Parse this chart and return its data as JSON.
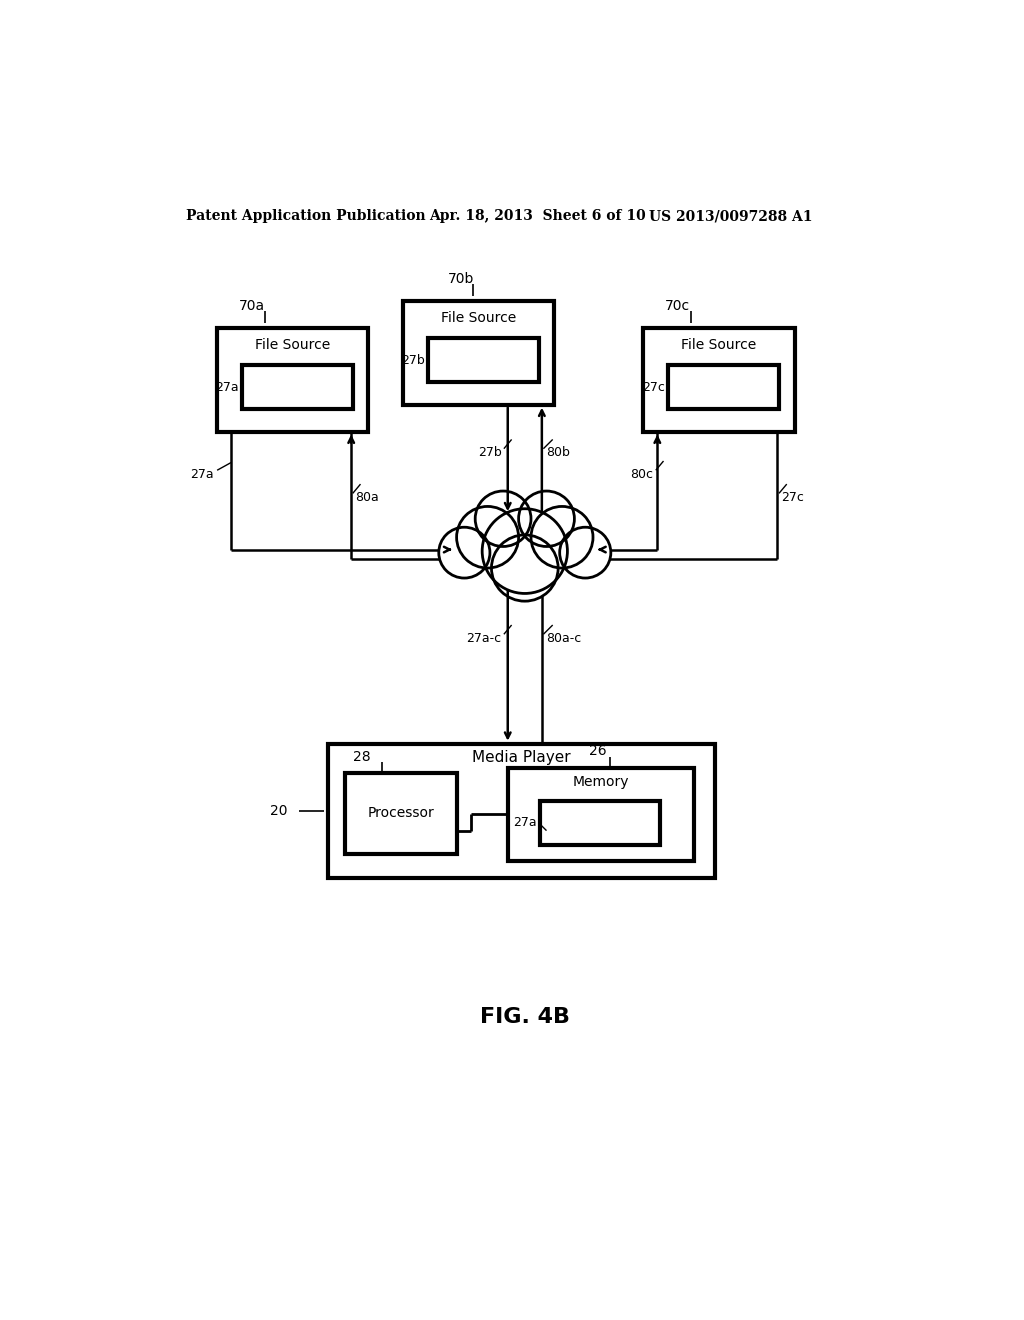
{
  "bg_color": "#ffffff",
  "header_left": "Patent Application Publication",
  "header_mid": "Apr. 18, 2013  Sheet 6 of 10",
  "header_right": "US 2013/0097288 A1",
  "fig_label": "FIG. 4B",
  "file_source_a_label": "File Source",
  "file_source_b_label": "File Source",
  "file_source_c_label": "File Source",
  "ref_70a": "70a",
  "ref_70b": "70b",
  "ref_70c": "70c",
  "ref_27a_box": "27a",
  "ref_27b_box": "27b",
  "ref_27c_box": "27c",
  "ref_27a_line": "27a",
  "ref_27b_line": "27b",
  "ref_27c_line": "27c",
  "ref_80a": "80a",
  "ref_80b": "80b",
  "ref_80c": "80c",
  "ref_27ac": "27a-c",
  "ref_80ac": "80a-c",
  "ref_20": "20",
  "ref_26": "26",
  "ref_28": "28",
  "ref_27a_mem": "27a",
  "media_player_label": "Media Player",
  "processor_label": "Processor",
  "memory_label": "Memory"
}
